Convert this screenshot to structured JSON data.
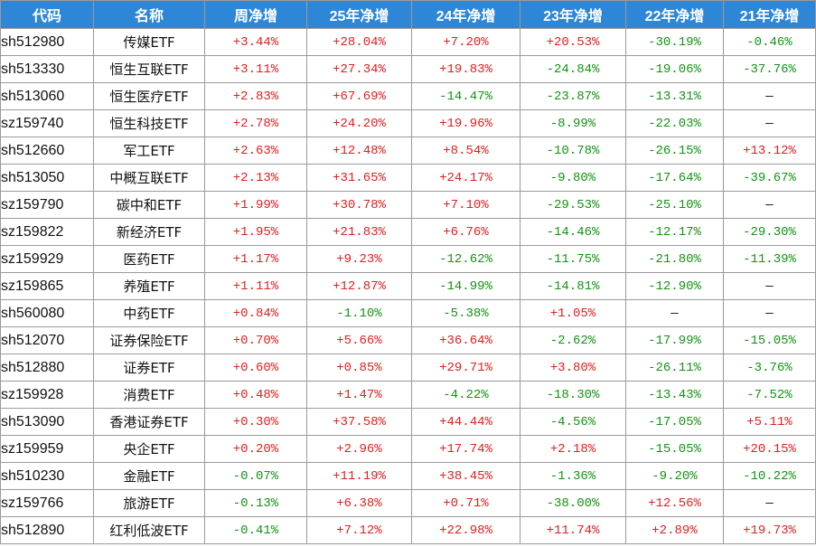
{
  "table": {
    "headers": [
      "代码",
      "名称",
      "周净增",
      "25年净增",
      "24年净增",
      "23年净增",
      "22年净增",
      "21年净增"
    ],
    "rows": [
      [
        "sh512980",
        "传媒ETF",
        "+3.44%",
        "+28.04%",
        "+7.20%",
        "+20.53%",
        "-30.19%",
        "-0.46%"
      ],
      [
        "sh513330",
        "恒生互联ETF",
        "+3.11%",
        "+27.34%",
        "+19.83%",
        "-24.84%",
        "-19.06%",
        "-37.76%"
      ],
      [
        "sh513060",
        "恒生医疗ETF",
        "+2.83%",
        "+67.69%",
        "-14.47%",
        "-23.87%",
        "-13.31%",
        "—"
      ],
      [
        "sz159740",
        "恒生科技ETF",
        "+2.78%",
        "+24.20%",
        "+19.96%",
        "-8.99%",
        "-22.03%",
        "—"
      ],
      [
        "sh512660",
        "军工ETF",
        "+2.63%",
        "+12.48%",
        "+8.54%",
        "-10.78%",
        "-26.15%",
        "+13.12%"
      ],
      [
        "sh513050",
        "中概互联ETF",
        "+2.13%",
        "+31.65%",
        "+24.17%",
        "-9.80%",
        "-17.64%",
        "-39.67%"
      ],
      [
        "sz159790",
        "碳中和ETF",
        "+1.99%",
        "+30.78%",
        "+7.10%",
        "-29.53%",
        "-25.10%",
        "—"
      ],
      [
        "sz159822",
        "新经济ETF",
        "+1.95%",
        "+21.83%",
        "+6.76%",
        "-14.46%",
        "-12.17%",
        "-29.30%"
      ],
      [
        "sz159929",
        "医药ETF",
        "+1.17%",
        "+9.23%",
        "-12.62%",
        "-11.75%",
        "-21.80%",
        "-11.39%"
      ],
      [
        "sz159865",
        "养殖ETF",
        "+1.11%",
        "+12.87%",
        "-14.99%",
        "-14.81%",
        "-12.90%",
        "—"
      ],
      [
        "sh560080",
        "中药ETF",
        "+0.84%",
        "-1.10%",
        "-5.38%",
        "+1.05%",
        "—",
        "—"
      ],
      [
        "sh512070",
        "证券保险ETF",
        "+0.70%",
        "+5.66%",
        "+36.64%",
        "-2.62%",
        "-17.99%",
        "-15.05%"
      ],
      [
        "sh512880",
        "证券ETF",
        "+0.60%",
        "+0.85%",
        "+29.71%",
        "+3.80%",
        "-26.11%",
        "-3.76%"
      ],
      [
        "sz159928",
        "消费ETF",
        "+0.48%",
        "+1.47%",
        "-4.22%",
        "-18.30%",
        "-13.43%",
        "-7.52%"
      ],
      [
        "sh513090",
        "香港证券ETF",
        "+0.30%",
        "+37.58%",
        "+44.44%",
        "-4.56%",
        "-17.05%",
        "+5.11%"
      ],
      [
        "sz159959",
        "央企ETF",
        "+0.20%",
        "+2.96%",
        "+17.74%",
        "+2.18%",
        "-15.05%",
        "+20.15%"
      ],
      [
        "sh510230",
        "金融ETF",
        "-0.07%",
        "+11.19%",
        "+38.45%",
        "-1.36%",
        "-9.20%",
        "-10.22%"
      ],
      [
        "sz159766",
        "旅游ETF",
        "-0.13%",
        "+6.38%",
        "+0.71%",
        "-38.00%",
        "+12.56%",
        "—"
      ],
      [
        "sh512890",
        "红利低波ETF",
        "-0.41%",
        "+7.12%",
        "+22.98%",
        "+11.74%",
        "+2.89%",
        "+19.73%"
      ]
    ]
  },
  "colors": {
    "header_bg": "#2e86d6",
    "header_text": "#ffffff",
    "positive": "#e02020",
    "negative": "#139313",
    "neutral": "#111111",
    "border": "#9a9a9a"
  }
}
